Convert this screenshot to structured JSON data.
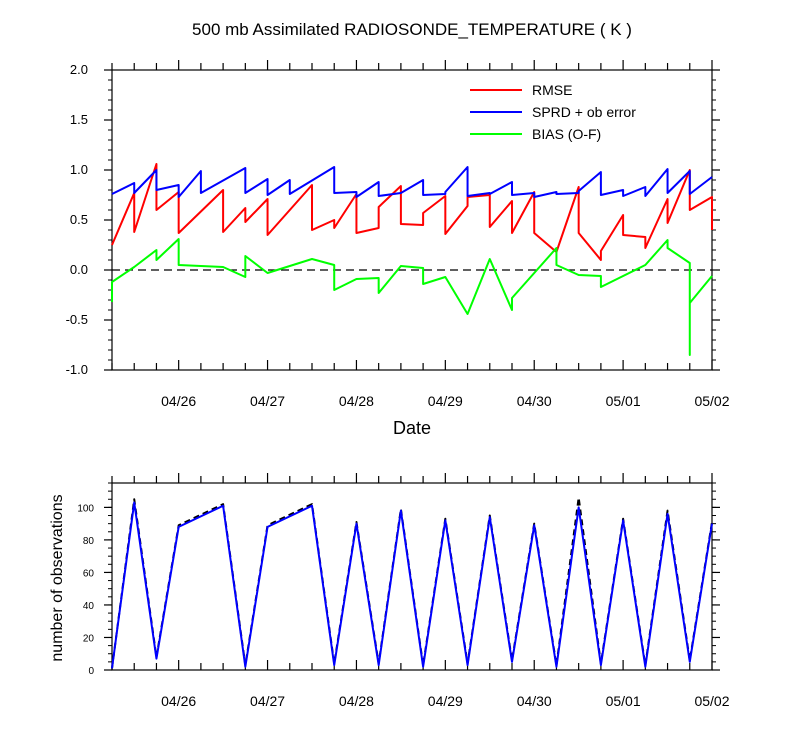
{
  "chart_data": [
    {
      "type": "line",
      "title": "500 mb Assimilated RADIOSONDE_TEMPERATURE ( K )",
      "xlabel": "Date",
      "ylabel": "",
      "xlim": [
        "04/25 06:00",
        "05/02 00:00"
      ],
      "ylim": [
        -1.0,
        2.0
      ],
      "yticks": [
        "2.0",
        "1.5",
        "1.0",
        "0.5",
        "0.0",
        "-0.5",
        "-1.0"
      ],
      "xticks": [
        "04/26",
        "04/27",
        "04/28",
        "04/29",
        "04/30",
        "05/01",
        "05/02"
      ],
      "legend_position": "top-right",
      "reference_line": {
        "y": 0.0,
        "style": "dashed"
      },
      "series": [
        {
          "name": "RMSE",
          "color": "#ff0000",
          "points": [
            [
              "04/25 06:00",
              0.25
            ],
            [
              "04/25 12:00",
              0.77
            ],
            [
              "04/25 12:00",
              0.38
            ],
            [
              "04/25 18:00",
              1.06
            ],
            [
              "04/25 18:00",
              0.6
            ],
            [
              "04/26 00:00",
              0.78
            ],
            [
              "04/26 00:00",
              0.37
            ],
            [
              "04/26 12:00",
              0.8
            ],
            [
              "04/26 12:00",
              0.38
            ],
            [
              "04/26 18:00",
              0.62
            ],
            [
              "04/26 18:00",
              0.48
            ],
            [
              "04/27 00:00",
              0.71
            ],
            [
              "04/27 00:00",
              0.35
            ],
            [
              "04/27 12:00",
              0.85
            ],
            [
              "04/27 12:00",
              0.4
            ],
            [
              "04/27 18:00",
              0.5
            ],
            [
              "04/27 18:00",
              0.42
            ],
            [
              "04/28 00:00",
              0.76
            ],
            [
              "04/28 00:00",
              0.37
            ],
            [
              "04/28 06:00",
              0.42
            ],
            [
              "04/28 06:00",
              0.63
            ],
            [
              "04/28 12:00",
              0.84
            ],
            [
              "04/28 12:00",
              0.46
            ],
            [
              "04/28 18:00",
              0.45
            ],
            [
              "04/28 18:00",
              0.57
            ],
            [
              "04/29 00:00",
              0.74
            ],
            [
              "04/29 00:00",
              0.36
            ],
            [
              "04/29 06:00",
              0.64
            ],
            [
              "04/29 06:00",
              0.73
            ],
            [
              "04/29 12:00",
              0.75
            ],
            [
              "04/29 12:00",
              0.43
            ],
            [
              "04/29 18:00",
              0.69
            ],
            [
              "04/29 18:00",
              0.37
            ],
            [
              "04/30 00:00",
              0.78
            ],
            [
              "04/30 00:00",
              0.37
            ],
            [
              "04/30 06:00",
              0.18
            ],
            [
              "04/30 12:00",
              0.83
            ],
            [
              "04/30 12:00",
              0.37
            ],
            [
              "04/30 18:00",
              0.1
            ],
            [
              "04/30 18:00",
              0.19
            ],
            [
              "05/01 00:00",
              0.55
            ],
            [
              "05/01 00:00",
              0.35
            ],
            [
              "05/01 06:00",
              0.33
            ],
            [
              "05/01 06:00",
              0.22
            ],
            [
              "05/01 12:00",
              0.71
            ],
            [
              "05/01 12:00",
              0.47
            ],
            [
              "05/01 18:00",
              1.0
            ],
            [
              "05/01 18:00",
              0.6
            ],
            [
              "05/02 00:00",
              0.73
            ],
            [
              "05/02 00:00",
              0.4
            ]
          ]
        },
        {
          "name": "SPRD + ob error",
          "color": "#0000ff",
          "points": [
            [
              "04/25 06:00",
              0.76
            ],
            [
              "04/25 12:00",
              0.87
            ],
            [
              "04/25 12:00",
              0.77
            ],
            [
              "04/25 18:00",
              1.0
            ],
            [
              "04/25 18:00",
              0.8
            ],
            [
              "04/26 00:00",
              0.85
            ],
            [
              "04/26 00:00",
              0.73
            ],
            [
              "04/26 06:00",
              0.99
            ],
            [
              "04/26 06:00",
              0.77
            ],
            [
              "04/26 18:00",
              1.02
            ],
            [
              "04/26 18:00",
              0.77
            ],
            [
              "04/27 00:00",
              0.91
            ],
            [
              "04/27 00:00",
              0.75
            ],
            [
              "04/27 06:00",
              0.9
            ],
            [
              "04/27 06:00",
              0.76
            ],
            [
              "04/27 18:00",
              1.03
            ],
            [
              "04/27 18:00",
              0.77
            ],
            [
              "04/28 00:00",
              0.78
            ],
            [
              "04/28 00:00",
              0.73
            ],
            [
              "04/28 06:00",
              0.88
            ],
            [
              "04/28 06:00",
              0.74
            ],
            [
              "04/28 12:00",
              0.77
            ],
            [
              "04/28 12:00",
              0.77
            ],
            [
              "04/28 18:00",
              0.9
            ],
            [
              "04/28 18:00",
              0.75
            ],
            [
              "04/29 00:00",
              0.76
            ],
            [
              "04/29 00:00",
              0.78
            ],
            [
              "04/29 06:00",
              1.03
            ],
            [
              "04/29 06:00",
              0.74
            ],
            [
              "04/29 12:00",
              0.77
            ],
            [
              "04/29 12:00",
              0.76
            ],
            [
              "04/29 18:00",
              0.88
            ],
            [
              "04/29 18:00",
              0.75
            ],
            [
              "04/30 00:00",
              0.77
            ],
            [
              "04/30 00:00",
              0.73
            ],
            [
              "04/30 06:00",
              0.78
            ],
            [
              "04/30 06:00",
              0.76
            ],
            [
              "04/30 12:00",
              0.77
            ],
            [
              "04/30 12:00",
              0.79
            ],
            [
              "04/30 18:00",
              0.98
            ],
            [
              "04/30 18:00",
              0.75
            ],
            [
              "05/01 00:00",
              0.8
            ],
            [
              "05/01 00:00",
              0.74
            ],
            [
              "05/01 06:00",
              0.83
            ],
            [
              "05/01 06:00",
              0.74
            ],
            [
              "05/01 12:00",
              1.01
            ],
            [
              "05/01 12:00",
              0.77
            ],
            [
              "05/01 18:00",
              0.99
            ],
            [
              "05/01 18:00",
              0.76
            ],
            [
              "05/02 00:00",
              0.93
            ]
          ]
        },
        {
          "name": "BIAS (O-F)",
          "color": "#00ff00",
          "points": [
            [
              "04/25 06:00",
              -0.32
            ],
            [
              "04/25 06:00",
              -0.12
            ],
            [
              "04/25 12:00",
              0.03
            ],
            [
              "04/25 18:00",
              0.2
            ],
            [
              "04/25 18:00",
              0.1
            ],
            [
              "04/26 00:00",
              0.31
            ],
            [
              "04/26 00:00",
              0.05
            ],
            [
              "04/26 12:00",
              0.03
            ],
            [
              "04/26 18:00",
              -0.07
            ],
            [
              "04/26 18:00",
              0.14
            ],
            [
              "04/27 00:00",
              -0.03
            ],
            [
              "04/27 12:00",
              0.11
            ],
            [
              "04/27 18:00",
              0.05
            ],
            [
              "04/27 18:00",
              -0.2
            ],
            [
              "04/28 00:00",
              -0.09
            ],
            [
              "04/28 06:00",
              -0.08
            ],
            [
              "04/28 06:00",
              -0.23
            ],
            [
              "04/28 12:00",
              0.04
            ],
            [
              "04/28 18:00",
              0.02
            ],
            [
              "04/28 18:00",
              -0.14
            ],
            [
              "04/29 00:00",
              -0.07
            ],
            [
              "04/29 06:00",
              -0.44
            ],
            [
              "04/29 12:00",
              0.11
            ],
            [
              "04/29 18:00",
              -0.4
            ],
            [
              "04/29 18:00",
              -0.28
            ],
            [
              "04/30 06:00",
              0.22
            ],
            [
              "04/30 06:00",
              0.05
            ],
            [
              "04/30 12:00",
              -0.05
            ],
            [
              "04/30 18:00",
              -0.06
            ],
            [
              "04/30 18:00",
              -0.17
            ],
            [
              "05/01 06:00",
              0.05
            ],
            [
              "05/01 12:00",
              0.3
            ],
            [
              "05/01 12:00",
              0.22
            ],
            [
              "05/01 18:00",
              0.07
            ],
            [
              "05/01 18:00",
              -0.85
            ],
            [
              "05/01 18:00",
              -0.33
            ],
            [
              "05/02 00:00",
              -0.06
            ]
          ]
        }
      ]
    },
    {
      "type": "line",
      "title": "",
      "xlabel": "",
      "ylabel": "number of observations",
      "xlim": [
        "04/25 06:00",
        "05/02 00:00"
      ],
      "ylim": [
        0,
        115
      ],
      "yticks": [
        "100",
        "80",
        "60",
        "40",
        "20",
        "0"
      ],
      "xticks": [
        "04/26",
        "04/27",
        "04/28",
        "04/29",
        "04/30",
        "05/01",
        "05/02"
      ],
      "series": [
        {
          "name": "",
          "color": "#000000",
          "dash": true,
          "points": [
            [
              "04/25 06:00",
              1
            ],
            [
              "04/25 12:00",
              105
            ],
            [
              "04/25 18:00",
              8
            ],
            [
              "04/26 00:00",
              89
            ],
            [
              "04/26 12:00",
              102
            ],
            [
              "04/26 18:00",
              3
            ],
            [
              "04/27 00:00",
              89
            ],
            [
              "04/27 12:00",
              102
            ],
            [
              "04/27 18:00",
              4
            ],
            [
              "04/28 00:00",
              91
            ],
            [
              "04/28 06:00",
              4
            ],
            [
              "04/28 12:00",
              99
            ],
            [
              "04/28 18:00",
              3
            ],
            [
              "04/29 00:00",
              93
            ],
            [
              "04/29 06:00",
              4
            ],
            [
              "04/29 12:00",
              95
            ],
            [
              "04/29 18:00",
              6
            ],
            [
              "04/30 00:00",
              90
            ],
            [
              "04/30 06:00",
              3
            ],
            [
              "04/30 12:00",
              106
            ],
            [
              "04/30 18:00",
              4
            ],
            [
              "05/01 00:00",
              93
            ],
            [
              "05/01 06:00",
              3
            ],
            [
              "05/01 12:00",
              98
            ],
            [
              "05/01 18:00",
              6
            ],
            [
              "05/02 00:00",
              91
            ]
          ]
        },
        {
          "name": "",
          "color": "#0000ff",
          "points": [
            [
              "04/25 06:00",
              1
            ],
            [
              "04/25 12:00",
              103
            ],
            [
              "04/25 18:00",
              7
            ],
            [
              "04/26 00:00",
              88
            ],
            [
              "04/26 12:00",
              101
            ],
            [
              "04/26 18:00",
              2
            ],
            [
              "04/27 00:00",
              88
            ],
            [
              "04/27 12:00",
              101
            ],
            [
              "04/27 18:00",
              3
            ],
            [
              "04/28 00:00",
              90
            ],
            [
              "04/28 06:00",
              3
            ],
            [
              "04/28 12:00",
              98
            ],
            [
              "04/28 18:00",
              2
            ],
            [
              "04/29 00:00",
              92
            ],
            [
              "04/29 06:00",
              3
            ],
            [
              "04/29 12:00",
              94
            ],
            [
              "04/29 18:00",
              5
            ],
            [
              "04/30 00:00",
              89
            ],
            [
              "04/30 06:00",
              2
            ],
            [
              "04/30 12:00",
              100
            ],
            [
              "04/30 18:00",
              3
            ],
            [
              "05/01 00:00",
              92
            ],
            [
              "05/01 06:00",
              2
            ],
            [
              "05/01 12:00",
              96
            ],
            [
              "05/01 18:00",
              5
            ],
            [
              "05/02 00:00",
              90
            ]
          ]
        }
      ]
    }
  ]
}
